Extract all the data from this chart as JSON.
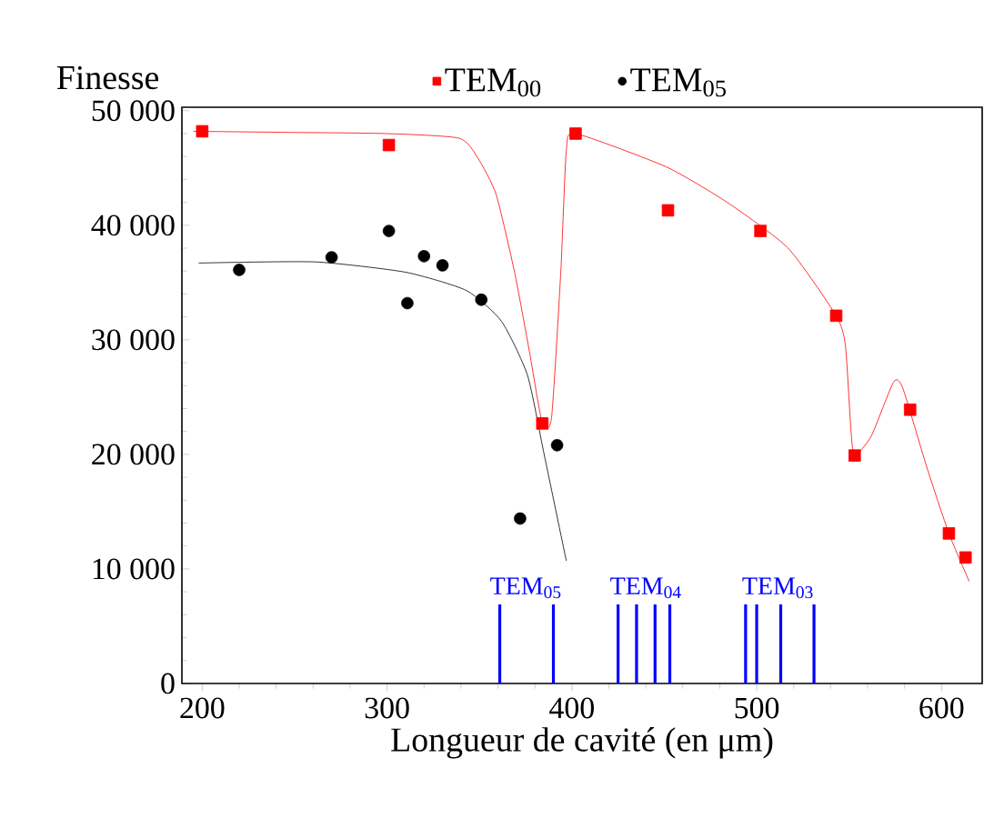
{
  "chart_data": {
    "type": "scatter",
    "ylabel": "Finesse",
    "xlabel": "Longueur de cavité (en μm)",
    "xlim": [
      189,
      622
    ],
    "ylim": [
      0,
      50300
    ],
    "xticks": [
      200,
      300,
      400,
      500,
      600
    ],
    "yticks": [
      {
        "value": 0,
        "label": "0"
      },
      {
        "value": 10000,
        "label": "10 000"
      },
      {
        "value": 20000,
        "label": "20 000"
      },
      {
        "value": 30000,
        "label": "30 000"
      },
      {
        "value": 40000,
        "label": "40 000"
      },
      {
        "value": 50000,
        "label": "50 000"
      }
    ],
    "legend": "top",
    "grid": false,
    "series": [
      {
        "name": "TEM$_{00}$",
        "color": "#ff0000",
        "marker": "square",
        "x": [
          200,
          301,
          384,
          402,
          452,
          502,
          543,
          553,
          583,
          604,
          613
        ],
        "values": [
          48200,
          47000,
          22700,
          48000,
          41300,
          39500,
          32100,
          19900,
          23900,
          13100,
          11000
        ]
      },
      {
        "name": "TEM$_{05}$",
        "color": "#000000",
        "marker": "circle",
        "x": [
          220,
          270,
          301,
          311,
          320,
          330,
          351,
          372,
          392
        ],
        "values": [
          36100,
          37200,
          39500,
          33200,
          37300,
          36500,
          33500,
          14400,
          20800
        ]
      },
      {
        "type": "line",
        "color": "#ff0000",
        "marker": "none",
        "x": [
          195,
          250,
          300,
          339,
          349,
          359,
          369,
          377,
          384,
          389,
          394,
          397,
          402,
          451,
          484,
          517,
          543,
          548,
          551,
          553,
          562,
          574,
          579,
          592,
          604,
          615
        ],
        "values": [
          48200,
          48100,
          48000,
          47600,
          45900,
          42700,
          35900,
          29000,
          22700,
          23200,
          35900,
          46500,
          48000,
          45100,
          42000,
          38000,
          32100,
          29500,
          22100,
          19900,
          21600,
          26300,
          25800,
          18900,
          13100,
          8900
        ]
      },
      {
        "type": "line",
        "color": "#000000",
        "marker": "none",
        "x": [
          198,
          261,
          310,
          343,
          362,
          376,
          385,
          397
        ],
        "values": [
          36700,
          36800,
          35900,
          34300,
          31600,
          26900,
          20000,
          10700
        ]
      },
      {
        "type": "bar",
        "color": "#0000ff",
        "x": [
          361,
          390,
          425,
          435,
          445,
          453,
          494,
          500,
          513,
          531
        ],
        "values": [
          6900,
          6900,
          6900,
          6900,
          6900,
          6900,
          6900,
          6900,
          6900,
          6900
        ]
      }
    ],
    "annotations": [
      "TEM$_{05}$",
      "TEM$_{04}$",
      "TEM$_{03}$"
    ]
  }
}
